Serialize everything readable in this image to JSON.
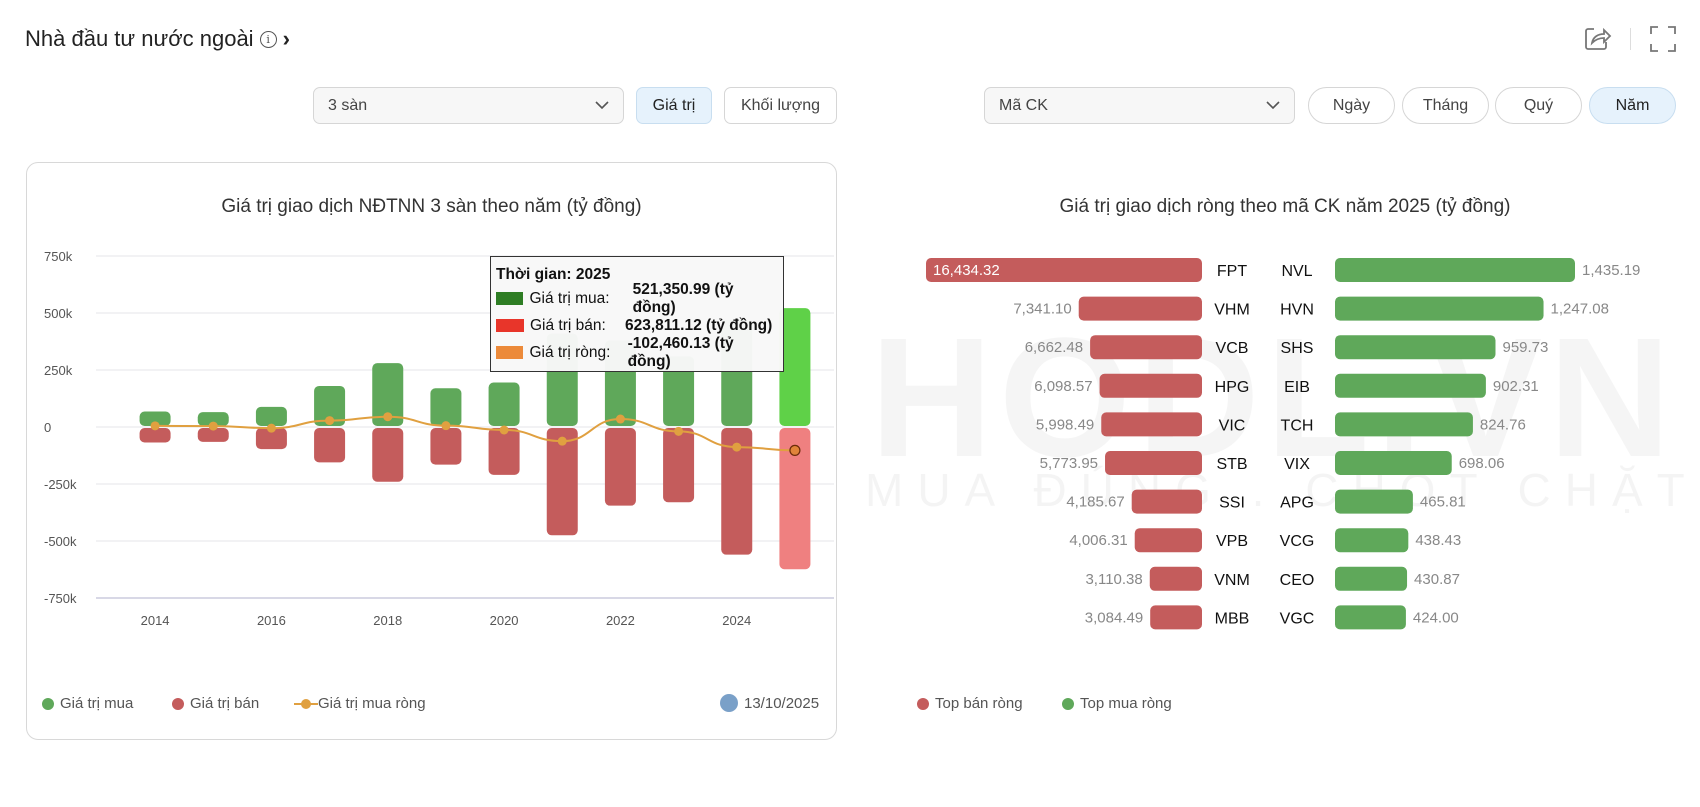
{
  "header": {
    "title": "Nhà đầu tư nước ngoài",
    "info_icon": "i",
    "chevron": "›"
  },
  "controls_left": {
    "exchange_select": "3 sàn",
    "value_button": "Giá trị",
    "volume_button": "Khối lượng"
  },
  "controls_right": {
    "ticker_select": "Mã CK",
    "periods": [
      "Ngày",
      "Tháng",
      "Quý",
      "Năm"
    ],
    "active_period": "Năm"
  },
  "watermark": {
    "logo": "HODL.VN",
    "slogan": "MUA ĐÚNG . CHỐT CHẶT"
  },
  "colors": {
    "buy": "#5fa85a",
    "sell": "#c45c5c",
    "net": "#e0a040",
    "buy_highlight": "#5fd148",
    "sell_highlight": "#ef8080"
  },
  "chart_data": [
    {
      "type": "bar",
      "title": "Giá trị giao dịch NĐTNN 3 sàn theo năm (tỷ đồng)",
      "categories": [
        2014,
        2015,
        2016,
        2017,
        2018,
        2019,
        2020,
        2021,
        2022,
        2023,
        2024,
        2025
      ],
      "x_tick_labels": [
        "2014",
        "2016",
        "2018",
        "2020",
        "2022",
        "2024"
      ],
      "y_tick_labels": [
        "750k",
        "500k",
        "250k",
        "0",
        "-250k",
        "-500k",
        "-750k"
      ],
      "ylim": [
        -750000,
        750000
      ],
      "series": [
        {
          "name": "Giá trị mua",
          "type": "bar",
          "values": [
            68000,
            65000,
            88000,
            180000,
            280000,
            170000,
            195000,
            410000,
            380000,
            310000,
            470000,
            521350.99
          ]
        },
        {
          "name": "Giá trị bán",
          "type": "bar",
          "values": [
            -68000,
            -65000,
            -97000,
            -155000,
            -240000,
            -165000,
            -210000,
            -475000,
            -345000,
            -330000,
            -560000,
            -623811.12
          ]
        },
        {
          "name": "Giá trị mua ròng",
          "type": "line",
          "values": [
            5000,
            4000,
            -5000,
            28000,
            45000,
            6000,
            -13000,
            -62000,
            35000,
            -19000,
            -88000,
            -102460.13
          ]
        }
      ],
      "tooltip": {
        "title": "Thời gian: 2025",
        "rows": [
          {
            "label": "Giá trị mua:",
            "value": "521,350.99 (tỷ đồng)"
          },
          {
            "label": "Giá trị bán:",
            "value": "623,811.12 (tỷ đồng)"
          },
          {
            "label": "Giá trị ròng:",
            "value": "-102,460.13 (tỷ đồng)"
          }
        ]
      },
      "updated": "13/10/2025"
    },
    {
      "type": "bar",
      "title": "Giá trị giao dịch ròng theo mã CK năm 2025 (tỷ đồng)",
      "sell_series": {
        "name": "Top bán ròng",
        "tickers": [
          "FPT",
          "VHM",
          "VCB",
          "HPG",
          "VIC",
          "STB",
          "SSI",
          "VPB",
          "VNM",
          "MBB"
        ],
        "values": [
          16434.32,
          7341.1,
          6662.48,
          6098.57,
          5998.49,
          5773.95,
          4185.67,
          4006.31,
          3110.38,
          3084.49
        ],
        "labels": [
          "16,434.32",
          "7,341.10",
          "6,662.48",
          "6,098.57",
          "5,998.49",
          "5,773.95",
          "4,185.67",
          "4,006.31",
          "3,110.38",
          "3,084.49"
        ]
      },
      "buy_series": {
        "name": "Top mua ròng",
        "tickers": [
          "NVL",
          "HVN",
          "SHS",
          "EIB",
          "TCH",
          "VIX",
          "APG",
          "VCG",
          "CEO",
          "VGC"
        ],
        "values": [
          1435.19,
          1247.08,
          959.73,
          902.31,
          824.76,
          698.06,
          465.81,
          438.43,
          430.87,
          424.0
        ],
        "labels": [
          "1,435.19",
          "1,247.08",
          "959.73",
          "902.31",
          "824.76",
          "698.06",
          "465.81",
          "438.43",
          "430.87",
          "424.00"
        ]
      }
    }
  ]
}
